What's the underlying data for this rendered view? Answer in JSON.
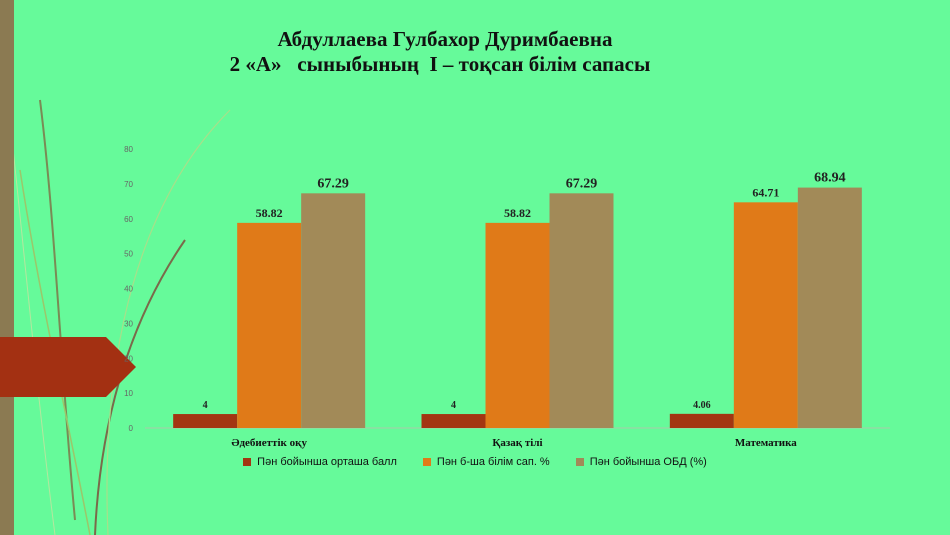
{
  "title": {
    "line1": "Абдуллаева Гулбахор Дуримбаевна",
    "line2": "2 «А»   сыныбының  I – тоқсан білім сапасы"
  },
  "colors": {
    "background": "#66FA9A",
    "series": [
      "#A33512",
      "#E07A18",
      "#A28A58"
    ],
    "decor_strip": "#8B7A52",
    "decor_arrow": "#A33012"
  },
  "chart_data": {
    "type": "bar",
    "categories": [
      "Әдебиеттік оқу",
      "Қазақ тілі",
      "Математика"
    ],
    "series": [
      {
        "name": "Пән бойынша орташа балл",
        "values": [
          4,
          4,
          4.06
        ],
        "labels": [
          "4",
          "4",
          "4.06"
        ]
      },
      {
        "name": "Пән б-ша білім сап. %",
        "values": [
          58.82,
          58.82,
          64.71
        ],
        "labels": [
          "58.82",
          "58.82",
          "64.71"
        ]
      },
      {
        "name": "Пән бойынша ОБД (%)",
        "values": [
          67.29,
          67.29,
          68.94
        ],
        "labels": [
          "67.29",
          "67.29",
          "68.94"
        ]
      }
    ],
    "yticks": [
      "0",
      "10",
      "20",
      "30",
      "40",
      "50",
      "60",
      "70",
      "80"
    ],
    "ylim": [
      0,
      80
    ],
    "legend_position": "bottom",
    "grid": false
  }
}
